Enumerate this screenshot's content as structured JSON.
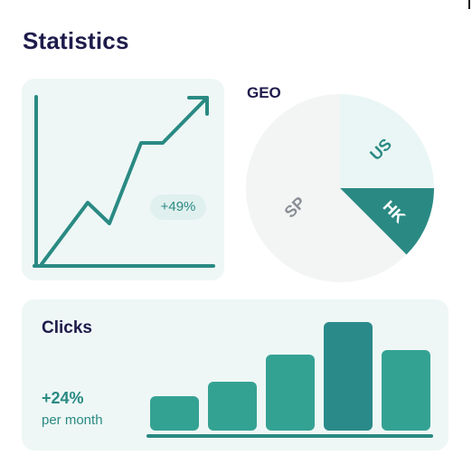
{
  "page": {
    "title": "Statistics"
  },
  "trend": {
    "badge": "+49%",
    "color": "#2a8a83",
    "card_color": "#eef7f6"
  },
  "geo": {
    "title": "GEO",
    "segments": [
      {
        "label": "US",
        "color": "#eaf6f5",
        "label_color": "#2a8a83"
      },
      {
        "label": "HK",
        "color": "#2a8a83",
        "label_color": "#ffffff"
      },
      {
        "label": "SP",
        "color": "#f3f4f4",
        "label_color": "#8a8f96"
      }
    ]
  },
  "clicks": {
    "title": "Clicks",
    "change": "+24%",
    "period": "per month",
    "bar_levels": [
      0.32,
      0.45,
      0.7,
      1.0,
      0.74
    ],
    "bar_color": "#34a293",
    "bar_highlight_color": "#2a8a89",
    "highlight_index": 3
  },
  "colors": {
    "heading": "#1e1b4b",
    "accent": "#2a8a83"
  }
}
